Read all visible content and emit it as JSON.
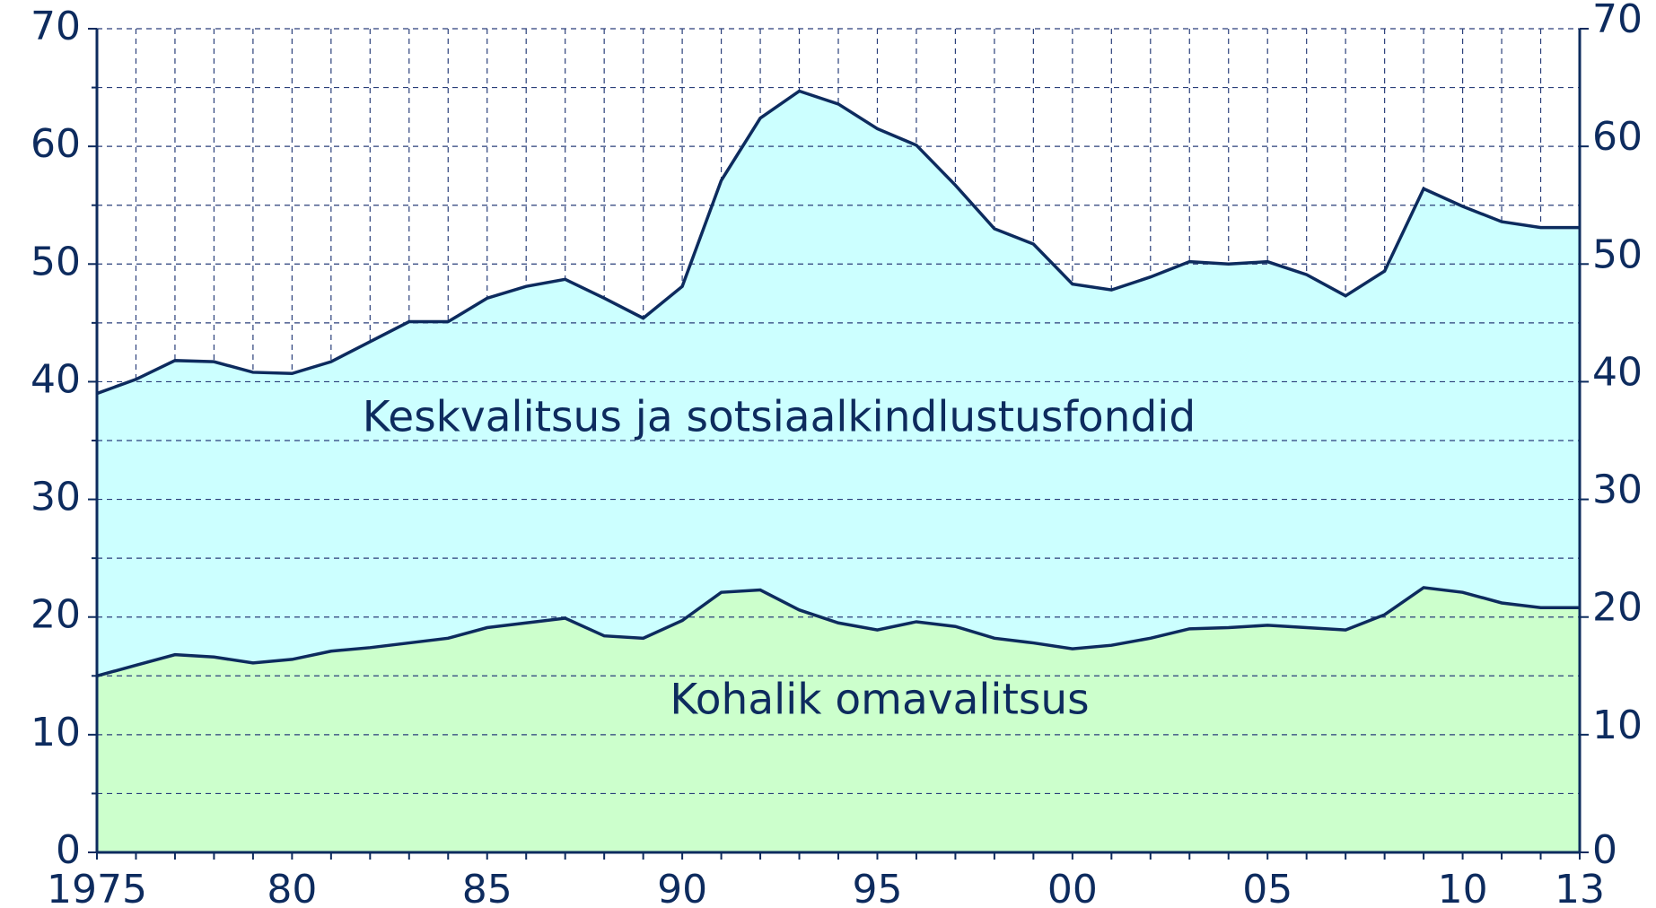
{
  "chart_data": {
    "type": "stacked_area",
    "x": [
      1975,
      1976,
      1977,
      1978,
      1979,
      1980,
      1981,
      1982,
      1983,
      1984,
      1985,
      1986,
      1987,
      1988,
      1989,
      1990,
      1991,
      1992,
      1993,
      1994,
      1995,
      1996,
      1997,
      1998,
      1999,
      2000,
      2001,
      2002,
      2003,
      2004,
      2005,
      2006,
      2007,
      2008,
      2009,
      2010,
      2011,
      2012,
      2013
    ],
    "series": [
      {
        "name": "Kohalik omavalitsus",
        "color": "#ccffcc",
        "values": [
          15.0,
          15.9,
          16.8,
          16.6,
          16.1,
          16.4,
          17.1,
          17.4,
          17.8,
          18.2,
          19.1,
          19.5,
          19.9,
          18.4,
          18.2,
          19.7,
          22.1,
          22.3,
          20.6,
          19.5,
          18.9,
          19.6,
          19.2,
          18.2,
          17.8,
          17.3,
          17.6,
          18.2,
          19.0,
          19.1,
          19.3,
          19.1,
          18.9,
          20.2,
          22.5,
          22.1,
          21.2,
          20.8,
          20.8
        ]
      },
      {
        "name": "Keskvalitsus ja sotsiaalkindlustusfondid",
        "color": "#ccffff",
        "values": [
          24.0,
          24.3,
          25.0,
          25.1,
          24.7,
          24.3,
          24.6,
          26.0,
          27.3,
          26.9,
          28.0,
          28.6,
          28.8,
          28.7,
          27.2,
          28.4,
          35.0,
          40.1,
          44.1,
          44.1,
          42.6,
          40.5,
          37.5,
          34.8,
          33.9,
          31.0,
          30.2,
          30.7,
          31.2,
          30.9,
          30.9,
          30.0,
          28.4,
          29.2,
          33.9,
          32.8,
          32.4,
          32.3,
          32.3
        ]
      }
    ],
    "line_color": "#0d2b5e",
    "xlim": [
      1975,
      2013
    ],
    "xticks": [
      1975,
      {
        "value": 1980,
        "label": "80"
      },
      {
        "value": 1985,
        "label": "85"
      },
      {
        "value": 1990,
        "label": "90"
      },
      {
        "value": 1995,
        "label": "95"
      },
      {
        "value": 2000,
        "label": "00"
      },
      {
        "value": 2005,
        "label": "05"
      },
      {
        "value": 2010,
        "label": "10"
      },
      {
        "value": 2013,
        "label": "13"
      }
    ],
    "ylim": [
      0,
      70
    ],
    "yticks": [
      0,
      10,
      20,
      30,
      40,
      50,
      60,
      70
    ],
    "yminorticks": [
      5,
      15,
      25,
      35,
      45,
      55,
      65
    ],
    "y2lim": [
      0,
      70
    ],
    "y2ticks": [
      0,
      10,
      20,
      30,
      40,
      50,
      60,
      70
    ],
    "grid": true
  }
}
